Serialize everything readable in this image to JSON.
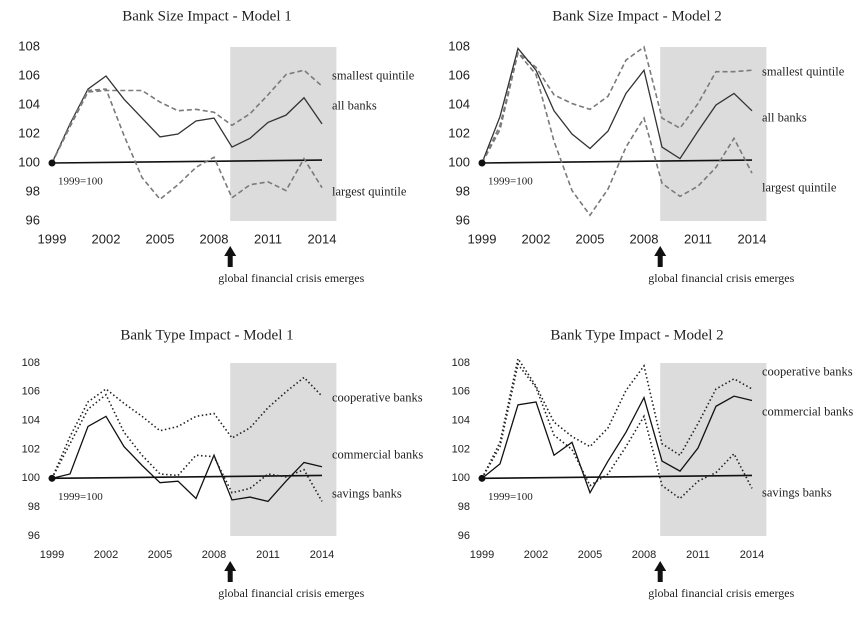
{
  "chart_data": [
    {
      "type": "line",
      "title": "Bank Size Impact - Model 1",
      "x": [
        1999,
        2000,
        2001,
        2002,
        2003,
        2004,
        2005,
        2006,
        2007,
        2008,
        2009,
        2010,
        2011,
        2012,
        2013,
        2014
      ],
      "series": [
        {
          "name": "smallest quintile",
          "color": "#7a7a7a",
          "dash": "dashed",
          "values": [
            100,
            102.5,
            104.9,
            105.0,
            105.0,
            105.0,
            104.2,
            103.6,
            103.7,
            103.5,
            102.6,
            103.4,
            104.7,
            106.1,
            106.4,
            105.3
          ]
        },
        {
          "name": "all banks",
          "color": "#333333",
          "dash": "solid",
          "values": [
            100,
            102.7,
            105.1,
            106.0,
            104.4,
            103.1,
            101.8,
            102.0,
            102.9,
            103.1,
            101.1,
            101.7,
            102.8,
            103.3,
            104.5,
            102.7
          ]
        },
        {
          "name": "largest quintile",
          "color": "#7a7a7a",
          "dash": "dashed",
          "values": [
            100,
            102.6,
            105.0,
            105.1,
            101.9,
            99.0,
            97.5,
            98.5,
            99.7,
            100.4,
            97.6,
            98.5,
            98.7,
            98.1,
            100.3,
            98.3
          ]
        }
      ],
      "reference_line": {
        "x": [
          1999,
          2014
        ],
        "values": [
          100,
          100.2
        ]
      },
      "base_label": "1999=100",
      "annotation": "global financial crisis emerges",
      "shaded_x": [
        2008.9,
        2014.8
      ],
      "xlim": [
        1999,
        2014
      ],
      "xticks": [
        1999,
        2002,
        2005,
        2008,
        2011,
        2014
      ],
      "ylim": [
        96,
        108
      ],
      "yticks": [
        96,
        98,
        100,
        102,
        104,
        106,
        108
      ]
    },
    {
      "type": "line",
      "title": "Bank Size Impact - Model 2",
      "x": [
        1999,
        2000,
        2001,
        2002,
        2003,
        2004,
        2005,
        2006,
        2007,
        2008,
        2009,
        2010,
        2011,
        2012,
        2013,
        2014
      ],
      "series": [
        {
          "name": "smallest quintile",
          "color": "#7a7a7a",
          "dash": "dashed",
          "values": [
            100,
            102.6,
            107.6,
            106.6,
            104.7,
            104.1,
            103.7,
            104.6,
            107.1,
            108.0,
            103.1,
            102.4,
            104.1,
            106.3,
            106.3,
            106.4
          ]
        },
        {
          "name": "all banks",
          "color": "#333333",
          "dash": "solid",
          "values": [
            100,
            103.2,
            107.9,
            106.4,
            103.6,
            102.0,
            101.0,
            102.2,
            104.8,
            106.4,
            101.1,
            100.3,
            102.2,
            104.0,
            104.8,
            103.6
          ]
        },
        {
          "name": "largest quintile",
          "color": "#7a7a7a",
          "dash": "dashed",
          "values": [
            100,
            102.3,
            107.6,
            106.1,
            101.5,
            98.1,
            96.4,
            98.2,
            101.1,
            103.1,
            98.6,
            97.7,
            98.4,
            99.7,
            101.7,
            99.3
          ]
        }
      ],
      "reference_line": {
        "x": [
          1999,
          2014
        ],
        "values": [
          100,
          100.2
        ]
      },
      "base_label": "1999=100",
      "annotation": "global financial crisis emerges",
      "shaded_x": [
        2008.9,
        2014.8
      ],
      "xlim": [
        1999,
        2014
      ],
      "xticks": [
        1999,
        2002,
        2005,
        2008,
        2011,
        2014
      ],
      "ylim": [
        96,
        108
      ],
      "yticks": [
        96,
        98,
        100,
        102,
        104,
        106,
        108
      ]
    },
    {
      "type": "line",
      "title": "Bank Type Impact - Model 1",
      "x": [
        1999,
        2000,
        2001,
        2002,
        2003,
        2004,
        2005,
        2006,
        2007,
        2008,
        2009,
        2010,
        2011,
        2012,
        2013,
        2014
      ],
      "series": [
        {
          "name": "cooperative banks",
          "color": "#222222",
          "dash": "dotted",
          "values": [
            100,
            102.9,
            105.3,
            106.2,
            105.2,
            104.3,
            103.3,
            103.6,
            104.3,
            104.5,
            102.8,
            103.5,
            104.9,
            106.0,
            107.0,
            105.7
          ]
        },
        {
          "name": "commercial banks",
          "color": "#111111",
          "dash": "solid",
          "values": [
            100,
            100.3,
            103.6,
            104.3,
            102.2,
            100.9,
            99.7,
            99.8,
            98.6,
            101.6,
            98.5,
            98.7,
            98.4,
            99.8,
            101.1,
            100.8
          ]
        },
        {
          "name": "savings banks",
          "color": "#222222",
          "dash": "dotted",
          "values": [
            100,
            102.4,
            104.8,
            105.8,
            103.2,
            101.6,
            100.3,
            100.2,
            101.6,
            101.5,
            99.0,
            99.3,
            100.3,
            100.1,
            100.6,
            98.4
          ]
        }
      ],
      "reference_line": {
        "x": [
          1999,
          2014
        ],
        "values": [
          100,
          100.2
        ]
      },
      "base_label": "1999=100",
      "annotation": "global financial crisis emerges",
      "shaded_x": [
        2008.9,
        2014.8
      ],
      "xlim": [
        1999,
        2014
      ],
      "xticks": [
        1999,
        2002,
        2005,
        2008,
        2011,
        2014
      ],
      "ylim": [
        96,
        108
      ],
      "yticks": [
        96,
        98,
        100,
        102,
        104,
        106,
        108
      ]
    },
    {
      "type": "line",
      "title": "Bank Type Impact - Model 2",
      "x": [
        1999,
        2000,
        2001,
        2002,
        2003,
        2004,
        2005,
        2006,
        2007,
        2008,
        2009,
        2010,
        2011,
        2012,
        2013,
        2014
      ],
      "series": [
        {
          "name": "cooperative banks",
          "color": "#222222",
          "dash": "dotted",
          "values": [
            100,
            102.5,
            108.3,
            106.4,
            103.9,
            102.9,
            102.2,
            103.5,
            106.1,
            107.8,
            102.4,
            101.6,
            103.8,
            106.2,
            106.9,
            106.2
          ]
        },
        {
          "name": "commercial banks",
          "color": "#111111",
          "dash": "solid",
          "values": [
            100,
            101.0,
            105.1,
            105.3,
            101.6,
            102.5,
            99.0,
            101.2,
            103.2,
            105.6,
            101.2,
            100.5,
            102.1,
            105.0,
            105.7,
            105.4
          ]
        },
        {
          "name": "savings banks",
          "color": "#222222",
          "dash": "dotted",
          "values": [
            100,
            102.2,
            107.9,
            106.3,
            103.0,
            102.0,
            99.5,
            100.3,
            102.2,
            104.3,
            99.5,
            98.6,
            99.8,
            100.4,
            101.7,
            99.3
          ]
        }
      ],
      "reference_line": {
        "x": [
          1999,
          2014
        ],
        "values": [
          100,
          100.2
        ]
      },
      "base_label": "1999=100",
      "annotation": "global financial crisis emerges",
      "shaded_x": [
        2008.9,
        2014.8
      ],
      "xlim": [
        1999,
        2014
      ],
      "xticks": [
        1999,
        2002,
        2005,
        2008,
        2011,
        2014
      ],
      "ylim": [
        96,
        108
      ],
      "yticks": [
        96,
        98,
        100,
        102,
        104,
        106,
        108
      ]
    }
  ]
}
